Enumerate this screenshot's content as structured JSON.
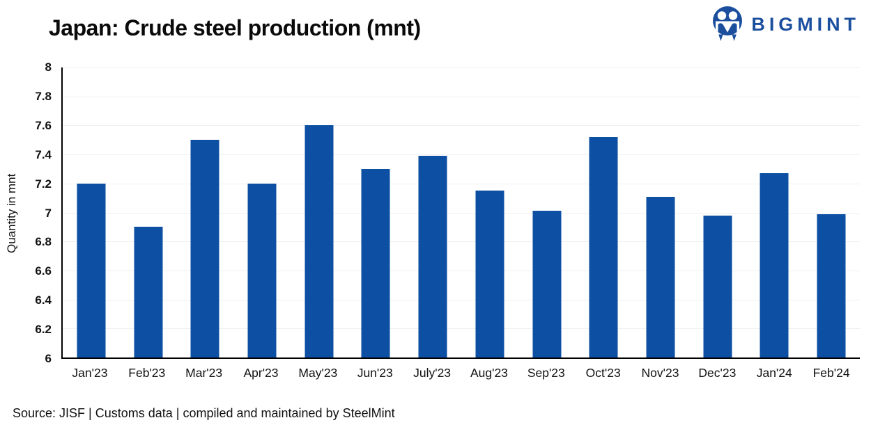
{
  "header": {
    "title": "Japan: Crude steel production (mnt)",
    "logo_text": "BIGMINT"
  },
  "chart_data": {
    "type": "bar",
    "title": "Japan: Crude steel production (mnt)",
    "xlabel": "",
    "ylabel": "Quantity in mnt",
    "ylim": [
      6,
      8
    ],
    "ytick_step": 0.2,
    "grid": true,
    "legend": false,
    "categories": [
      "Jan'23",
      "Feb'23",
      "Mar'23",
      "Apr'23",
      "May'23",
      "Jun'23",
      "July'23",
      "Aug'23",
      "Sep'23",
      "Oct'23",
      "Nov'23",
      "Dec'23",
      "Jan'24",
      "Feb'24"
    ],
    "values": [
      7.2,
      6.9,
      7.5,
      7.2,
      7.6,
      7.3,
      7.39,
      7.15,
      7.01,
      7.52,
      7.11,
      6.98,
      7.27,
      6.99
    ],
    "bar_color": "#0c4fa3",
    "grid_color": "#efefef",
    "axis_color": "#000000"
  },
  "logo": {
    "brand_color": "#1b4f9e",
    "icon": "bigmint-people-m-icon"
  },
  "footer": {
    "source": "Source: JISF | Customs data | compiled and maintained by SteelMint"
  }
}
